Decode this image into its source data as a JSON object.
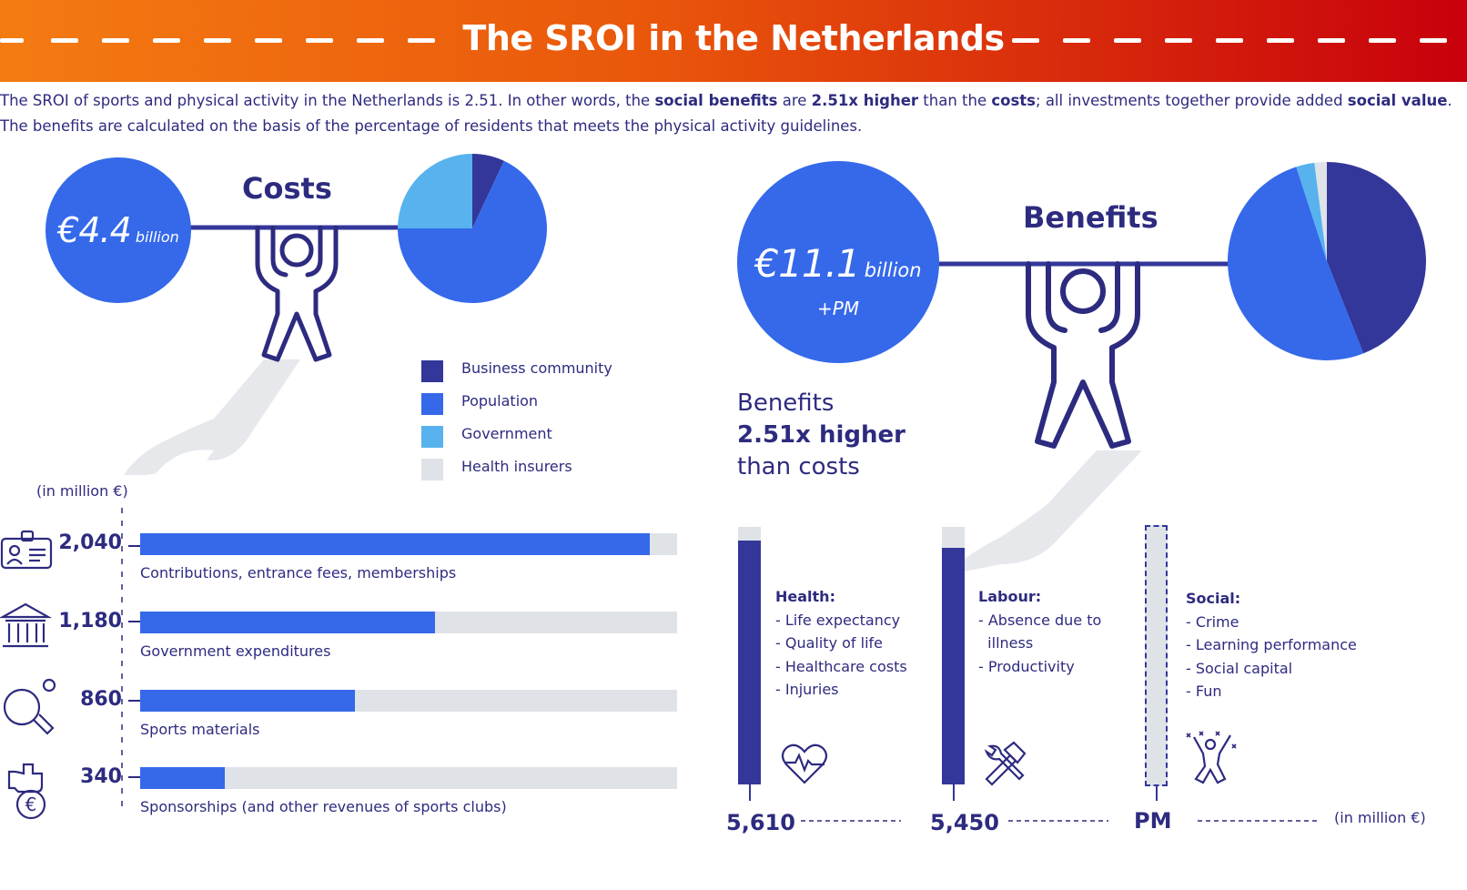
{
  "title": "The SROI in the Netherlands",
  "intro": {
    "p1": "The SROI of sports and physical activity in the Netherlands is 2.51. In other words, the ",
    "b1": "social benefits",
    "p2": " are ",
    "b2": "2.51x higher",
    "p3": " than the ",
    "b3": "costs",
    "p4": "; all investments together provide added ",
    "b4": "social value",
    "p5": ". The benefits are calculated on the basis of the percentage of residents that meets the physical activity guidelines."
  },
  "costs": {
    "heading": "Costs",
    "amount": "€4.4",
    "unit": "billion"
  },
  "benefits": {
    "heading": "Benefits",
    "amount": "€11.1",
    "unit": "billion",
    "extra": "+PM"
  },
  "comparison": {
    "line1": "Benefits",
    "line2": "2.51x higher",
    "line3": "than costs"
  },
  "legend": [
    {
      "label": "Business community",
      "color": "#33379a"
    },
    {
      "label": "Population",
      "color": "#3569ea"
    },
    {
      "label": "Government",
      "color": "#57b2ee"
    },
    {
      "label": "Health insurers",
      "color": "#dfe3e8"
    }
  ],
  "colors": {
    "business": "#33379a",
    "population": "#3569ea",
    "government": "#57b2ee",
    "insurers": "#dfe3e8",
    "text": "#2d2b7f"
  },
  "chart_data": [
    {
      "type": "pie",
      "chart": "costs",
      "slices": [
        {
          "label": "Business community",
          "value": 7
        },
        {
          "label": "Population",
          "value": 68
        },
        {
          "label": "Government",
          "value": 25
        },
        {
          "label": "Health insurers",
          "value": 0
        }
      ]
    },
    {
      "type": "pie",
      "chart": "benefits",
      "slices": [
        {
          "label": "Business community",
          "value": 44
        },
        {
          "label": "Population",
          "value": 51
        },
        {
          "label": "Government",
          "value": 3
        },
        {
          "label": "Health insurers",
          "value": 2
        }
      ]
    },
    {
      "type": "bar",
      "orientation": "horizontal",
      "unit_label": "(in million €)",
      "max": 2150,
      "categories": [
        "Contributions, entrance fees, memberships",
        "Government expenditures",
        "Sports materials",
        "Sponsorships (and other revenues of sports clubs)"
      ],
      "values": [
        2040,
        1180,
        860,
        340
      ],
      "value_labels": [
        "2,040",
        "1,180",
        "860",
        "340"
      ]
    },
    {
      "type": "bar",
      "orientation": "vertical",
      "unit_label": "(in million €)",
      "max": 5930,
      "categories": [
        "Health",
        "Labour",
        "Social"
      ],
      "values": [
        5610,
        5450,
        null
      ],
      "value_labels": [
        "5,610",
        "5,450",
        "PM"
      ]
    }
  ],
  "benefit_categories": [
    {
      "heading": "Health:",
      "items": [
        "- Life expectancy",
        "- Quality of life",
        "- Healthcare costs",
        "- Injuries"
      ],
      "icon": "heart-pulse-icon"
    },
    {
      "heading": "Labour:",
      "items": [
        "- Absence due to",
        "  illness",
        "- Productivity"
      ],
      "icon": "hammer-wrench-icon"
    },
    {
      "heading": "Social:",
      "items": [
        "- Crime",
        "- Learning performance",
        "- Social capital",
        "- Fun"
      ],
      "icon": "celebrating-person-icon"
    }
  ],
  "cost_icons": [
    "id-card-icon",
    "government-building-icon",
    "table-tennis-icon",
    "hand-euro-coin-icon"
  ]
}
